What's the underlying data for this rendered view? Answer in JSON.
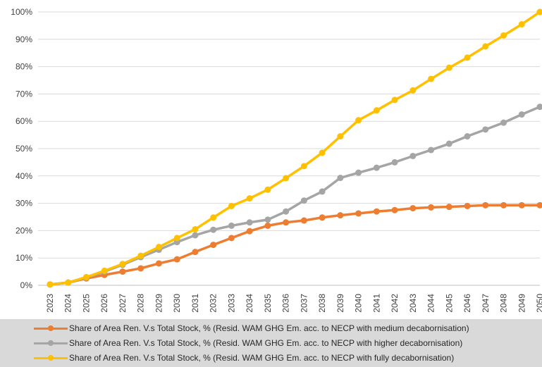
{
  "chart_data": {
    "type": "line",
    "title": "",
    "xlabel": "",
    "ylabel": "",
    "categories": [
      "2023",
      "2024",
      "2025",
      "2026",
      "2027",
      "2028",
      "2029",
      "2030",
      "2031",
      "2032",
      "2033",
      "2034",
      "2035",
      "2036",
      "2037",
      "2038",
      "2039",
      "2040",
      "2041",
      "2042",
      "2043",
      "2044",
      "2045",
      "2046",
      "2047",
      "2048",
      "2049",
      "2050"
    ],
    "ylim": [
      0,
      100
    ],
    "yticks": [
      "0%",
      "10%",
      "20%",
      "30%",
      "40%",
      "50%",
      "60%",
      "70%",
      "80%",
      "90%",
      "100%"
    ],
    "grid": true,
    "legend_position": "bottom",
    "series": [
      {
        "name": "Share of Area Ren. V.s Total Stock, % (Resid. WAM GHG Em. acc. to NECP with medium decabornisation)",
        "color": "#ed7d31",
        "values": [
          0.3,
          1.0,
          2.5,
          3.8,
          5.0,
          6.2,
          8.0,
          9.5,
          12.2,
          14.8,
          17.3,
          19.8,
          21.8,
          23.0,
          23.7,
          24.8,
          25.6,
          26.3,
          27.0,
          27.5,
          28.2,
          28.5,
          28.7,
          29.0,
          29.3,
          29.3,
          29.3,
          29.3
        ]
      },
      {
        "name": "Share of Area Ren. V.s Total Stock, % (Resid. WAM GHG Em. acc. to NECP with higher decabornisation)",
        "color": "#a5a5a5",
        "values": [
          0.3,
          1.0,
          2.8,
          5.0,
          7.5,
          10.3,
          13.0,
          15.8,
          18.3,
          20.3,
          21.8,
          23.0,
          24.0,
          27.0,
          31.0,
          34.3,
          39.3,
          41.2,
          43.0,
          45.0,
          47.3,
          49.5,
          51.8,
          54.5,
          57.0,
          59.5,
          62.5,
          65.3
        ]
      },
      {
        "name": "Share of Area Ren. V.s Total Stock, % (Resid. WAM GHG Em. acc. to NECP with fully decabornisation)",
        "color": "#ffc000",
        "values": [
          0.3,
          1.0,
          3.0,
          5.3,
          7.8,
          10.8,
          14.0,
          17.3,
          20.5,
          24.8,
          29.0,
          31.8,
          35.0,
          39.2,
          43.6,
          48.5,
          54.5,
          60.4,
          64.0,
          67.8,
          71.3,
          75.5,
          79.6,
          83.3,
          87.4,
          91.4,
          95.5,
          100.0
        ]
      }
    ]
  }
}
